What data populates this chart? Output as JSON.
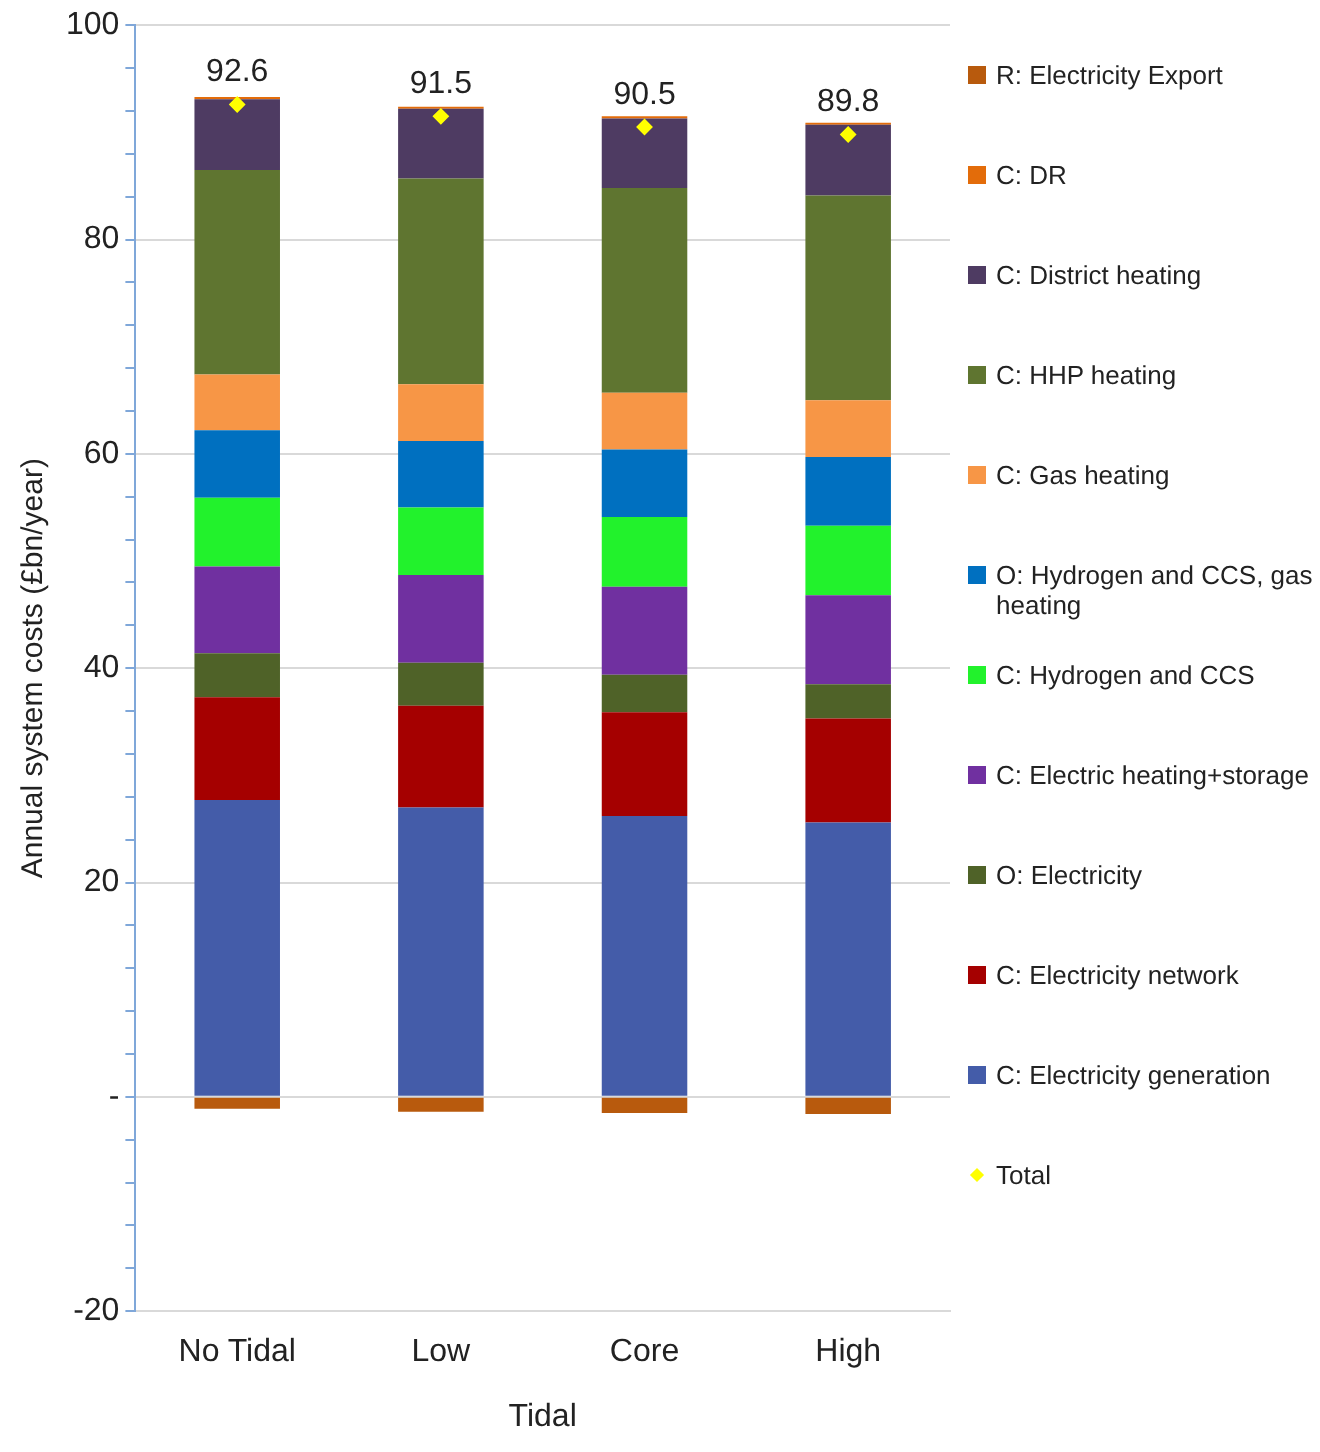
{
  "chart_data": {
    "type": "bar",
    "stacked": true,
    "ylabel": "Annual system costs (£bn/year)",
    "xlabel": "Tidal",
    "categories": [
      "No Tidal",
      "Low",
      "Core",
      "High"
    ],
    "ylim": [
      -20,
      100
    ],
    "yticks": [
      {
        "value": -20,
        "label": "-20"
      },
      {
        "value": -16,
        "label": null
      },
      {
        "value": -12,
        "label": null
      },
      {
        "value": -8,
        "label": null
      },
      {
        "value": -4,
        "label": null
      },
      {
        "value": 0,
        "label": "-"
      },
      {
        "value": 4,
        "label": null
      },
      {
        "value": 8,
        "label": null
      },
      {
        "value": 12,
        "label": null
      },
      {
        "value": 16,
        "label": null
      },
      {
        "value": 20,
        "label": "20"
      },
      {
        "value": 24,
        "label": null
      },
      {
        "value": 28,
        "label": null
      },
      {
        "value": 32,
        "label": null
      },
      {
        "value": 36,
        "label": null
      },
      {
        "value": 40,
        "label": "40"
      },
      {
        "value": 44,
        "label": null
      },
      {
        "value": 48,
        "label": null
      },
      {
        "value": 52,
        "label": null
      },
      {
        "value": 56,
        "label": null
      },
      {
        "value": 60,
        "label": "60"
      },
      {
        "value": 64,
        "label": null
      },
      {
        "value": 68,
        "label": null
      },
      {
        "value": 72,
        "label": null
      },
      {
        "value": 76,
        "label": null
      },
      {
        "value": 80,
        "label": "80"
      },
      {
        "value": 84,
        "label": null
      },
      {
        "value": 88,
        "label": null
      },
      {
        "value": 92,
        "label": null
      },
      {
        "value": 96,
        "label": null
      },
      {
        "value": 100,
        "label": "100"
      }
    ],
    "grid": "y",
    "legend": "right",
    "series": [
      {
        "name": "C: Electricity generation",
        "color": "#445ca9",
        "values": [
          27.7,
          27.0,
          26.2,
          25.6
        ]
      },
      {
        "name": "C: Electricity network",
        "color": "#a50000",
        "values": [
          9.6,
          9.5,
          9.7,
          9.7
        ]
      },
      {
        "name": "O: Electricity",
        "color": "#4f6228",
        "values": [
          4.1,
          4.0,
          3.5,
          3.2
        ]
      },
      {
        "name": "C: Electric heating+storage",
        "color": "#7030a0",
        "values": [
          8.1,
          8.2,
          8.2,
          8.3
        ]
      },
      {
        "name": "C: Hydrogen and CCS",
        "color": "#22f22c",
        "values": [
          6.4,
          6.3,
          6.5,
          6.5
        ]
      },
      {
        "name": "O: Hydrogen and CCS, gas heating",
        "color": "#0070c0",
        "values": [
          6.3,
          6.2,
          6.3,
          6.4
        ]
      },
      {
        "name": "C: Gas heating",
        "color": "#f79646",
        "values": [
          5.2,
          5.3,
          5.3,
          5.3
        ]
      },
      {
        "name": "C: HHP heating",
        "color": "#5f7530",
        "values": [
          19.1,
          19.2,
          19.1,
          19.1
        ]
      },
      {
        "name": "C: District heating",
        "color": "#4e3b62",
        "values": [
          6.6,
          6.5,
          6.5,
          6.6
        ]
      },
      {
        "name": "C: DR",
        "color": "#e36c0a",
        "values": [
          0.2,
          0.2,
          0.2,
          0.2
        ]
      },
      {
        "name": "R: Electricity Export",
        "color": "#b85a0d",
        "values": [
          -1.1,
          -1.4,
          -1.5,
          -1.6
        ]
      },
      {
        "name": "Total",
        "type": "scatter",
        "marker": "diamond",
        "color": "#ffff00",
        "x": [
          "No Tidal",
          "Low",
          "Core",
          "High"
        ],
        "values": [
          92.6,
          91.5,
          90.5,
          89.8
        ],
        "value_labels": [
          "92.6",
          "91.5",
          "90.5",
          "89.8"
        ]
      }
    ]
  }
}
